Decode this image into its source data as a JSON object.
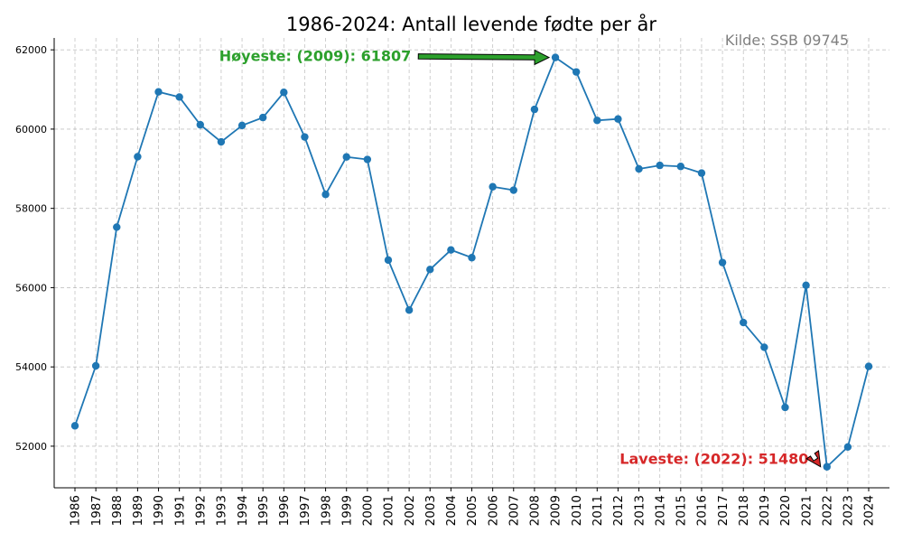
{
  "chart_data": {
    "type": "line",
    "title": "1986-2024: Antall levende fødte per år",
    "source_note": "Kilde: SSB 09745",
    "xlabel": "",
    "ylabel": "",
    "x": [
      1986,
      1987,
      1988,
      1989,
      1990,
      1991,
      1992,
      1993,
      1994,
      1995,
      1996,
      1997,
      1998,
      1999,
      2000,
      2001,
      2002,
      2003,
      2004,
      2005,
      2006,
      2007,
      2008,
      2009,
      2010,
      2011,
      2012,
      2013,
      2014,
      2015,
      2016,
      2017,
      2018,
      2019,
      2020,
      2021,
      2022,
      2023,
      2024
    ],
    "series": [
      {
        "name": "Levende fødte",
        "color": "#1f77b4",
        "values": [
          52514,
          54027,
          57526,
          59303,
          60939,
          60808,
          60109,
          59678,
          60092,
          60292,
          60927,
          59801,
          58352,
          59298,
          59234,
          56696,
          55434,
          56458,
          56951,
          56756,
          58545,
          58459,
          60497,
          61807,
          61442,
          60220,
          60255,
          58995,
          59084,
          59058,
          58890,
          56633,
          55120,
          54495,
          52979,
          56060,
          51480,
          51980,
          54013
        ]
      }
    ],
    "ylim": [
      50950,
      62300
    ],
    "yticks": [
      52000,
      54000,
      56000,
      58000,
      60000,
      62000
    ],
    "ytick_labels": [
      "52000",
      "54000",
      "56000",
      "58000",
      "60000",
      "62000"
    ],
    "grid": true,
    "annotations": [
      {
        "text": "Høyeste: (2009): 61807",
        "x": 2009,
        "y": 61807,
        "color": "#2ca02c",
        "text_x": 1997.5,
        "text_y": 61720
      },
      {
        "text": "Laveste: (2022): 51480",
        "x": 2022,
        "y": 51480,
        "color": "#d62728",
        "text_x": 2016.6,
        "text_y": 51550
      }
    ]
  }
}
